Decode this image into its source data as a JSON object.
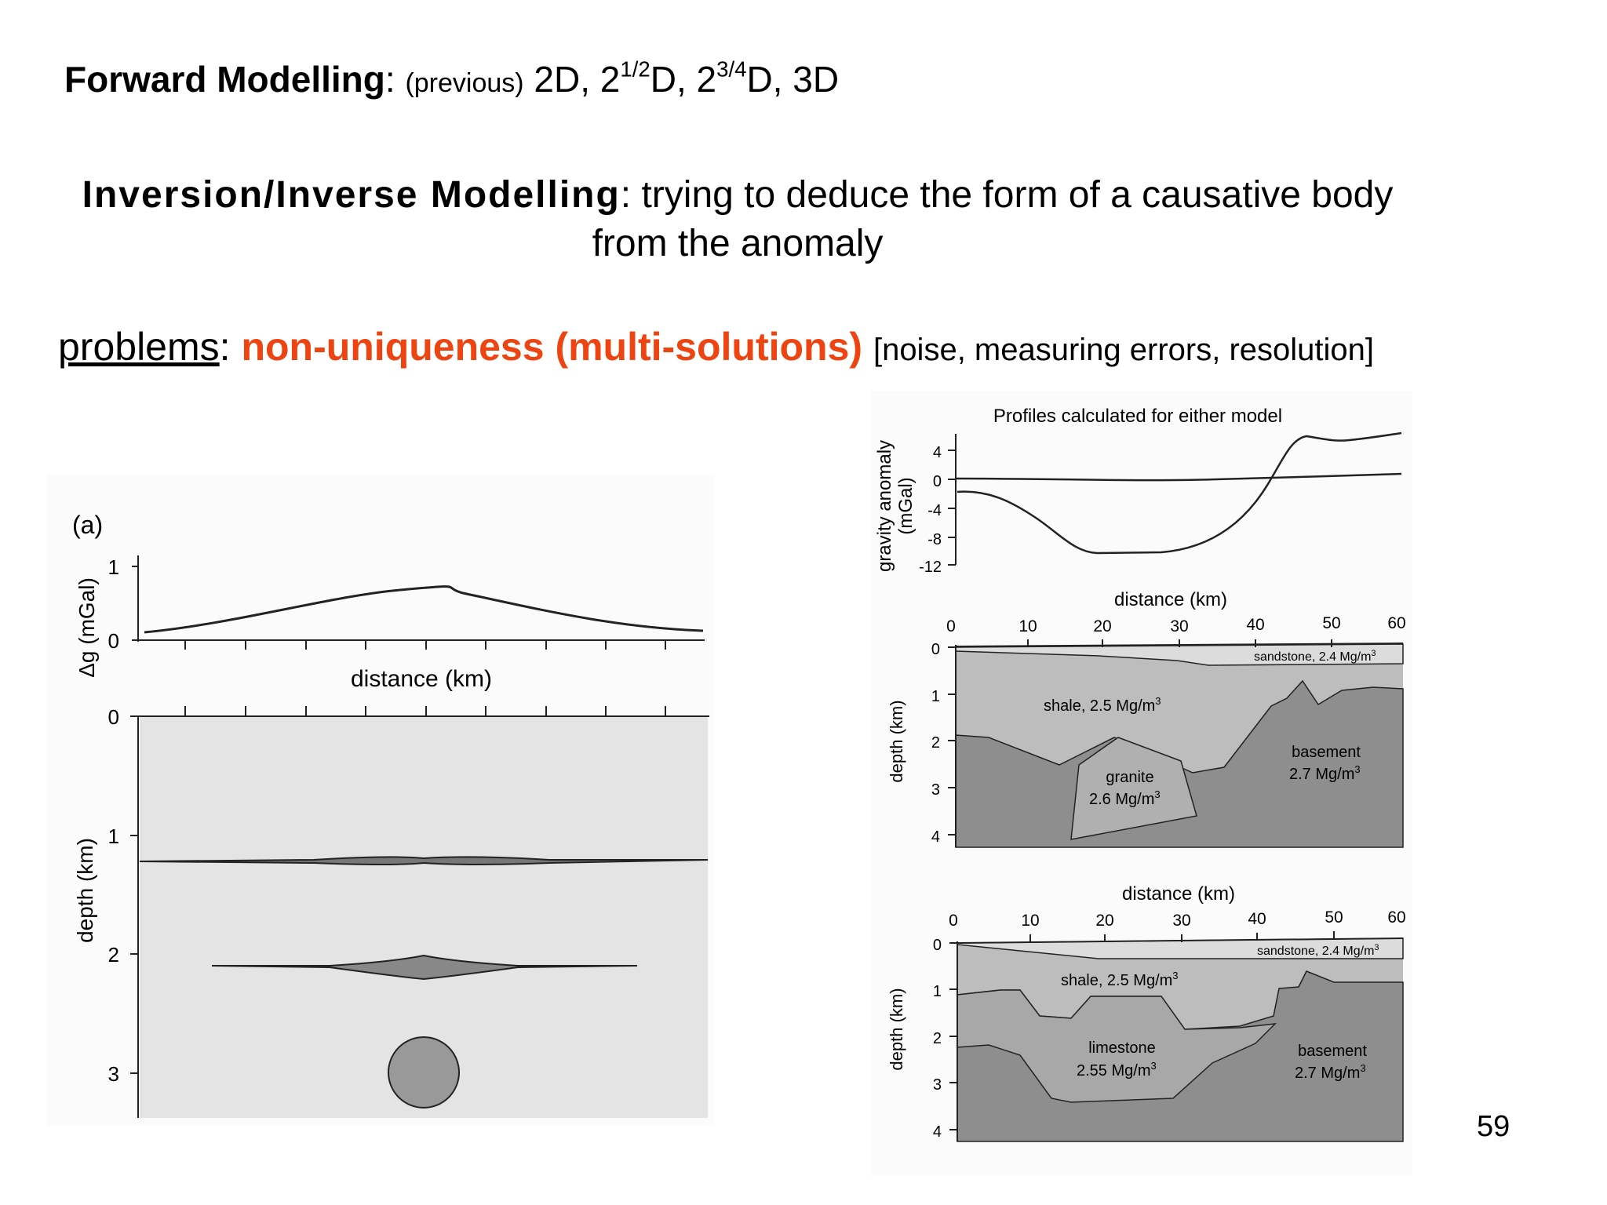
{
  "line1": {
    "term": "Forward Modelling",
    "colon": ":",
    "note": "(previous)",
    "list_a": "2D, 2",
    "sup_a": "1/2",
    "list_b": "D, 2",
    "sup_b": "3/4",
    "list_c": "D, 3D"
  },
  "line2": {
    "term": "Inversion/Inverse Modelling",
    "rest": ": trying to deduce the form of a causative body",
    "cont": "from the anomaly"
  },
  "line3": {
    "term": "problems",
    "colon": ": ",
    "highlight": "non-uniqueness (multi-solutions)",
    "bracket": "[noise, measuring errors, resolution]"
  },
  "figA": {
    "label": "(a)",
    "y_label_top": "Δg (mGal)",
    "y_ticks_top": [
      "1",
      "0"
    ],
    "x_label": "distance (km)",
    "depth_label": "depth (km)",
    "depth_ticks": [
      "0",
      "1",
      "2",
      "3"
    ]
  },
  "figB": {
    "title": "Profiles calculated for either model",
    "y_label": "gravity anomaly",
    "y_unit": "(mGal)",
    "y_ticks": [
      "4",
      "0",
      "-4",
      "-8",
      "-12"
    ],
    "x_label": "distance (km)",
    "x_ticks": [
      "0",
      "10",
      "20",
      "30",
      "40",
      "50",
      "60"
    ],
    "depth_label": "depth (km)",
    "depth_ticks": [
      "0",
      "1",
      "2",
      "3",
      "4"
    ],
    "model1": {
      "sandstone": "sandstone, 2.4 Mg/m",
      "shale": "shale, 2.5 Mg/m",
      "granite": "granite",
      "granite_density": "2.6 Mg/m",
      "basement": "basement",
      "basement_density": "2.7 Mg/m"
    },
    "model2": {
      "sandstone": "sandstone, 2.4 Mg/m",
      "shale": "shale, 2.5 Mg/m",
      "limestone": "limestone",
      "limestone_density": "2.55 Mg/m",
      "basement": "basement",
      "basement_density": "2.7 Mg/m"
    },
    "unit_exp": "3"
  },
  "page_number": "59"
}
